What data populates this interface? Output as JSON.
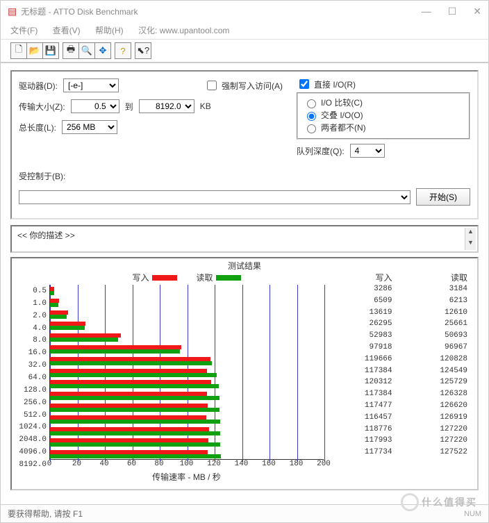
{
  "title": "无标题 - ATTO Disk Benchmark",
  "menu": {
    "file": "文件(F)",
    "view": "查看(V)",
    "help": "帮助(H)",
    "translator": "汉化: www.upantool.com"
  },
  "labels": {
    "drive": "驱动器(D):",
    "transfer": "传输大小(Z):",
    "to": "到",
    "kb": "KB",
    "length": "总长度(L):",
    "force": "强制写入访问(A)",
    "direct": "直接 I/O(R)",
    "io_cmp": "I/O 比较(C)",
    "overlap": "交叠 I/O(O)",
    "neither": "两者都不(N)",
    "depth": "队列深度(Q):",
    "controlled": "受控制于(B):",
    "start": "开始(S)",
    "desc_prefix": "<<  你的描述   >>",
    "results_title": "测试结果",
    "legend_write": "写入",
    "legend_read": "读取",
    "col_write": "写入",
    "col_read": "读取",
    "xaxis": "传输速率 - MB / 秒",
    "status": "要获得帮助, 请按 F1",
    "status_right": "NUM"
  },
  "values": {
    "drive": "[-e-]",
    "tmin": "0.5",
    "tmax": "8192.0",
    "length": "256 MB",
    "depth": "4",
    "direct_checked": true,
    "force_checked": false,
    "radio_selected": "overlap"
  },
  "chart": {
    "write_color": "#f01818",
    "read_color": "#10a010",
    "grid_color": "#3a3ad0",
    "xmax": 200,
    "xticks": [
      0,
      20,
      40,
      60,
      80,
      100,
      120,
      140,
      160,
      180,
      200
    ],
    "rows": [
      {
        "size": "0.5",
        "write": 3286,
        "read": 3184,
        "w_mb": 3.2,
        "r_mb": 3.1
      },
      {
        "size": "1.0",
        "write": 6509,
        "read": 6213,
        "w_mb": 6.4,
        "r_mb": 6.1
      },
      {
        "size": "2.0",
        "write": 13619,
        "read": 12610,
        "w_mb": 13.3,
        "r_mb": 12.3
      },
      {
        "size": "4.0",
        "write": 26295,
        "read": 25661,
        "w_mb": 25.7,
        "r_mb": 25.1
      },
      {
        "size": "8.0",
        "write": 52983,
        "read": 50693,
        "w_mb": 51.7,
        "r_mb": 49.5
      },
      {
        "size": "16.0",
        "write": 97918,
        "read": 96967,
        "w_mb": 95.6,
        "r_mb": 94.7
      },
      {
        "size": "32.0",
        "write": 119666,
        "read": 120828,
        "w_mb": 116.9,
        "r_mb": 118.0
      },
      {
        "size": "64.0",
        "write": 117384,
        "read": 124549,
        "w_mb": 114.6,
        "r_mb": 121.6
      },
      {
        "size": "128.0",
        "write": 120312,
        "read": 125729,
        "w_mb": 117.5,
        "r_mb": 122.8
      },
      {
        "size": "256.0",
        "write": 117384,
        "read": 126328,
        "w_mb": 114.6,
        "r_mb": 123.4
      },
      {
        "size": "512.0",
        "write": 117477,
        "read": 126620,
        "w_mb": 114.7,
        "r_mb": 123.7
      },
      {
        "size": "1024.0",
        "write": 116457,
        "read": 126919,
        "w_mb": 113.7,
        "r_mb": 123.9
      },
      {
        "size": "2048.0",
        "write": 118776,
        "read": 127220,
        "w_mb": 116.0,
        "r_mb": 124.2
      },
      {
        "size": "4096.0",
        "write": 117993,
        "read": 127220,
        "w_mb": 115.2,
        "r_mb": 124.2
      },
      {
        "size": "8192.0",
        "write": 117734,
        "read": 127522,
        "w_mb": 115.0,
        "r_mb": 124.5
      }
    ]
  },
  "watermark": "什么值得买"
}
